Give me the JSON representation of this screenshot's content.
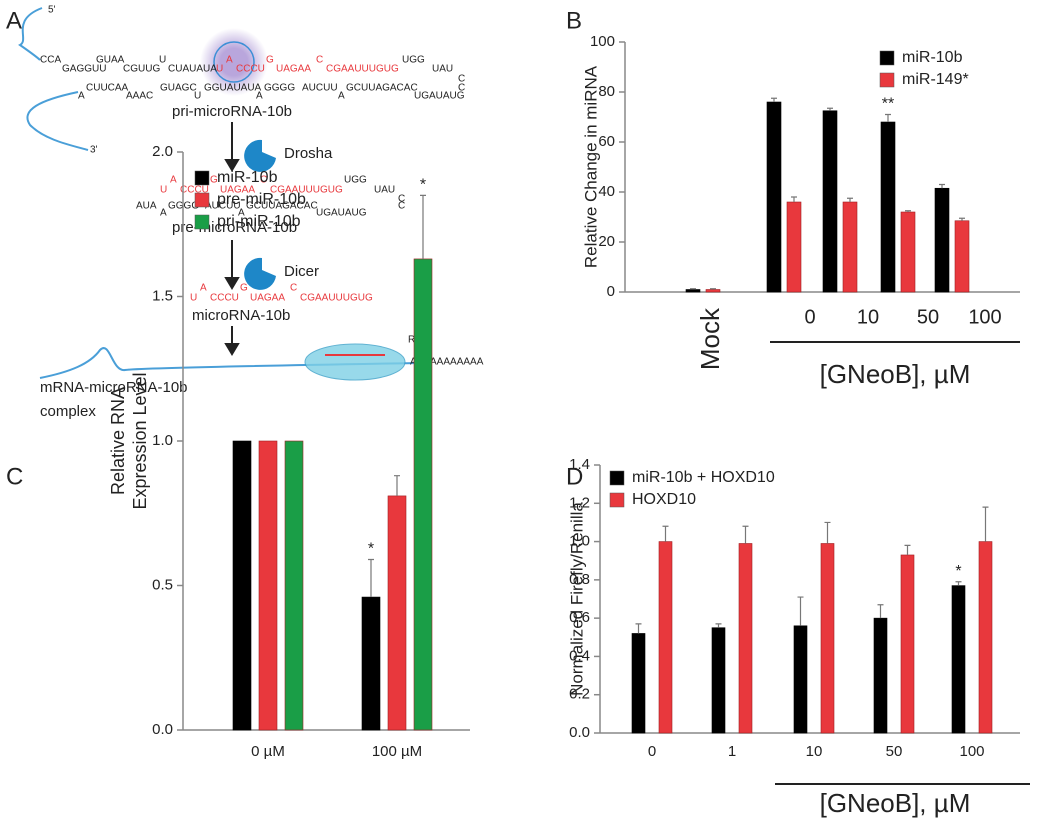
{
  "panel_labels": [
    "A",
    "B",
    "C",
    "D"
  ],
  "diagram": {
    "five_prime": "5'",
    "three_prime": "3'",
    "pri_top": [
      {
        "text": "CCA",
        "color": "#222222"
      },
      {
        "text": "GAGGUU",
        "color": "#222222"
      },
      {
        "text": "GUAA",
        "color": "#222222"
      },
      {
        "text": "CGUUG",
        "color": "#222222"
      },
      {
        "text": "U",
        "color": "#222222"
      },
      {
        "text": "CUAUAUA",
        "color": "#222222"
      },
      {
        "text": "U",
        "color": "#e8383d"
      },
      {
        "text": "A",
        "color": "#e8383d"
      },
      {
        "text": "CCCU",
        "color": "#e8383d"
      },
      {
        "text": "G",
        "color": "#e8383d"
      },
      {
        "text": "UAGAA",
        "color": "#e8383d"
      },
      {
        "text": "C",
        "color": "#e8383d"
      },
      {
        "text": "CGAAUUUGUG",
        "color": "#e8383d"
      },
      {
        "text": "UGG",
        "color": "#222222"
      },
      {
        "text": "UAU",
        "color": "#222222"
      },
      {
        "text": "C",
        "color": "#222222"
      }
    ],
    "pri_bottom": [
      {
        "text": "A",
        "color": "#222222"
      },
      {
        "text": "CUUCAA",
        "color": "#222222"
      },
      {
        "text": "AAAC",
        "color": "#222222"
      },
      {
        "text": "GUAGC",
        "color": "#222222"
      },
      {
        "text": "U",
        "color": "#222222"
      },
      {
        "text": "GGUAUAUA",
        "color": "#222222"
      },
      {
        "text": "A",
        "color": "#222222"
      },
      {
        "text": "GGGG",
        "color": "#222222"
      },
      {
        "text": "AUCUU",
        "color": "#222222"
      },
      {
        "text": "A",
        "color": "#222222"
      },
      {
        "text": "GCUUAGACAC",
        "color": "#222222"
      },
      {
        "text": "UGAUAUG",
        "color": "#222222"
      },
      {
        "text": "C",
        "color": "#222222"
      }
    ],
    "pri_label": "pri-microRNA-10b",
    "drosha": "Drosha",
    "pre_top": [
      {
        "text": "U",
        "color": "#e8383d"
      },
      {
        "text": "A",
        "color": "#e8383d"
      },
      {
        "text": "CCCU",
        "color": "#e8383d"
      },
      {
        "text": "G",
        "color": "#e8383d"
      },
      {
        "text": "UAGAA",
        "color": "#e8383d"
      },
      {
        "text": "C",
        "color": "#e8383d"
      },
      {
        "text": "CGAAUUUGUG",
        "color": "#e8383d"
      },
      {
        "text": "UGG",
        "color": "#222222"
      },
      {
        "text": "UAU",
        "color": "#222222"
      },
      {
        "text": "C",
        "color": "#222222"
      }
    ],
    "pre_bottom": [
      {
        "text": "AUA",
        "color": "#222222"
      },
      {
        "text": "A",
        "color": "#222222"
      },
      {
        "text": "GGGG",
        "color": "#222222"
      },
      {
        "text": "AUCUU",
        "color": "#222222"
      },
      {
        "text": "A",
        "color": "#222222"
      },
      {
        "text": "GCUUAGACAC",
        "color": "#222222"
      },
      {
        "text": "UGAUAUG",
        "color": "#222222"
      },
      {
        "text": "C",
        "color": "#222222"
      }
    ],
    "pre_label": "pre-microRNA-10b",
    "dicer": "Dicer",
    "mature": [
      {
        "text": "U",
        "color": "#e8383d"
      },
      {
        "text": "A",
        "color": "#e8383d"
      },
      {
        "text": "CCCU",
        "color": "#e8383d"
      },
      {
        "text": "G",
        "color": "#e8383d"
      },
      {
        "text": "UAGAA",
        "color": "#e8383d"
      },
      {
        "text": "C",
        "color": "#e8383d"
      },
      {
        "text": "CGAAUUUGUG",
        "color": "#e8383d"
      }
    ],
    "mature_label": "microRNA-10b",
    "risc": "RISC",
    "polya": "AAAAAAAAAAA",
    "complex_label": [
      "mRNA-microRNA-10b",
      "complex"
    ]
  },
  "chart_data": [
    {
      "type": "bar",
      "ylabel": [
        "Relative Change in miRNA"
      ],
      "xlabel": "[GNeoB], µM",
      "categories": [
        "Mock",
        "0",
        "10",
        "50",
        "100"
      ],
      "series": [
        {
          "name": "miR-10b",
          "color": "#000000",
          "values": [
            1,
            76,
            72.5,
            68,
            41.5
          ],
          "errors": [
            0.3,
            1.5,
            1,
            3,
            1.5
          ]
        },
        {
          "name": "miR-149*",
          "color": "#e8383d",
          "values": [
            1,
            36,
            36,
            32,
            28.5
          ],
          "errors": [
            0.3,
            2,
            1.5,
            0.5,
            1
          ]
        }
      ],
      "annotations": [
        "**"
      ],
      "ylim": [
        0,
        100
      ],
      "yticks": [
        0,
        20,
        40,
        60,
        80,
        100
      ],
      "legend": "upper right"
    },
    {
      "type": "bar",
      "ylabel": [
        "Relative RNA",
        "Expression Level"
      ],
      "categories": [
        "0 µM",
        "100 µM"
      ],
      "series": [
        {
          "name": "miR-10b",
          "color": "#000000",
          "values": [
            1,
            0.46
          ],
          "errors": [
            0,
            0.13
          ]
        },
        {
          "name": "pre-miR-10b",
          "color": "#e8383d",
          "values": [
            1,
            0.81
          ],
          "errors": [
            0,
            0.07
          ]
        },
        {
          "name": "pri-miR-10b",
          "color": "#1a9e47",
          "values": [
            1,
            1.63
          ],
          "errors": [
            0,
            0.22
          ]
        }
      ],
      "annotations": [
        "*",
        "*"
      ],
      "ylim": [
        0,
        2
      ],
      "yticks": [
        {
          "value": 0,
          "label": "0.0"
        },
        {
          "value": 0.5,
          "label": "0.5"
        },
        {
          "value": 1,
          "label": "1.0"
        },
        {
          "value": 1.5,
          "label": "1.5"
        },
        {
          "value": 2,
          "label": "2.0"
        }
      ],
      "legend": "upper left"
    },
    {
      "type": "bar",
      "ylabel": [
        "Normalized Firefly/Renilla"
      ],
      "xlabel": "[GNeoB], µM",
      "categories": [
        "0",
        "1",
        "10",
        "50",
        "100"
      ],
      "series": [
        {
          "name": "miR-10b + HOXD10",
          "color": "#000000",
          "values": [
            0.52,
            0.55,
            0.56,
            0.6,
            0.77
          ],
          "errors": [
            0.05,
            0.02,
            0.15,
            0.07,
            0.02
          ]
        },
        {
          "name": "HOXD10",
          "color": "#e8383d",
          "values": [
            1,
            0.99,
            0.99,
            0.93,
            1
          ],
          "errors": [
            0.08,
            0.09,
            0.11,
            0.05,
            0.18
          ]
        }
      ],
      "annotations": [
        "*"
      ],
      "ylim": [
        0,
        1.4
      ],
      "yticks": [
        {
          "value": 0,
          "label": "0.0"
        },
        {
          "value": 0.2,
          "label": "0.2"
        },
        {
          "value": 0.4,
          "label": "0.4"
        },
        {
          "value": 0.6,
          "label": "0.6"
        },
        {
          "value": 0.8,
          "label": "0.8"
        },
        {
          "value": 1,
          "label": "1.0"
        },
        {
          "value": 1.2,
          "label": "1.2"
        },
        {
          "value": 1.4,
          "label": "1.4"
        }
      ],
      "legend": "upper left"
    }
  ]
}
